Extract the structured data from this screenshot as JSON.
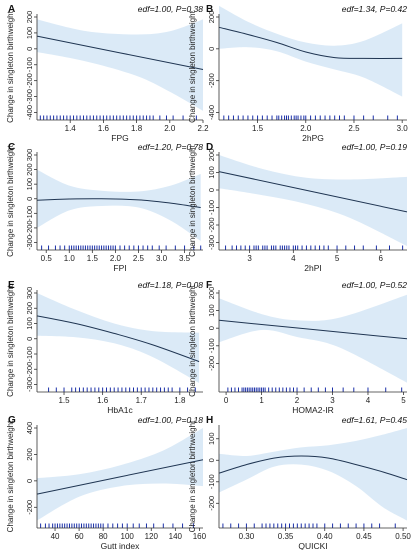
{
  "figure": {
    "background": "#ffffff"
  },
  "style": {
    "band": "#dbeaf7",
    "line": "#1f3552",
    "rug": "#1a2fa8",
    "axis": "#333333"
  },
  "chart_data": [
    {
      "panel": "A",
      "type": "line",
      "annotation": "edf=1.00, P=0.38",
      "xlabel": "FPG",
      "ylabel": "Change in singleton birthweight",
      "xlim": [
        1.2,
        2.2
      ],
      "ylim": [
        -400,
        200
      ],
      "xticks": [
        1.4,
        1.6,
        1.8,
        2.0,
        2.2
      ],
      "yticks": [
        -400,
        -300,
        -200,
        -100,
        0,
        100,
        200
      ],
      "curve": {
        "x": [
          1.2,
          2.2
        ],
        "y": [
          80,
          -130
        ]
      },
      "band_upper": {
        "x": [
          1.2,
          1.5,
          1.8,
          2.0,
          2.2
        ],
        "y": [
          185,
          110,
          90,
          110,
          185
        ]
      },
      "band_lower": {
        "x": [
          1.2,
          1.5,
          1.8,
          2.0,
          2.2
        ],
        "y": [
          -20,
          -80,
          -170,
          -270,
          -390
        ]
      },
      "rug": [
        1.22,
        1.24,
        1.26,
        1.28,
        1.3,
        1.32,
        1.34,
        1.36,
        1.38,
        1.4,
        1.42,
        1.44,
        1.46,
        1.48,
        1.5,
        1.52,
        1.54,
        1.56,
        1.58,
        1.6,
        1.62,
        1.64,
        1.66,
        1.68,
        1.7,
        1.72,
        1.74,
        1.76,
        1.78,
        1.8,
        1.82,
        1.84,
        1.86,
        1.88,
        1.9,
        1.94,
        1.98,
        2.02,
        2.08,
        2.16
      ]
    },
    {
      "panel": "B",
      "type": "line",
      "annotation": "edf=1.34, P=0.42",
      "xlabel": "2hPG",
      "ylabel": "Change in singleton birthweight",
      "xlim": [
        1.1,
        3.05
      ],
      "ylim": [
        -400,
        200
      ],
      "xticks": [
        1.5,
        2.0,
        2.5,
        3.0
      ],
      "yticks": [
        -400,
        -200,
        0,
        200
      ],
      "curve": {
        "x": [
          1.1,
          1.4,
          1.7,
          2.0,
          2.3,
          2.6,
          3.0
        ],
        "y": [
          135,
          90,
          40,
          -20,
          -55,
          -60,
          -60
        ]
      },
      "band_upper": {
        "x": [
          1.1,
          1.4,
          1.7,
          2.0,
          2.3,
          2.6,
          3.0
        ],
        "y": [
          270,
          170,
          95,
          40,
          20,
          50,
          160
        ]
      },
      "band_lower": {
        "x": [
          1.1,
          1.4,
          1.7,
          2.0,
          2.3,
          2.6,
          3.0
        ],
        "y": [
          0,
          10,
          -15,
          -80,
          -130,
          -180,
          -300
        ]
      },
      "rug": [
        1.15,
        1.2,
        1.25,
        1.3,
        1.35,
        1.4,
        1.45,
        1.5,
        1.55,
        1.6,
        1.65,
        1.7,
        1.72,
        1.75,
        1.78,
        1.8,
        1.82,
        1.85,
        1.88,
        1.9,
        1.92,
        1.95,
        1.98,
        2.0,
        2.05,
        2.1,
        2.15,
        2.2,
        2.25,
        2.3,
        2.35,
        2.4,
        2.5,
        2.6,
        2.7,
        2.85,
        2.95
      ]
    },
    {
      "panel": "C",
      "type": "line",
      "annotation": "edf=1.20, P=0.78",
      "xlabel": "FPI",
      "ylabel": "Change in singleton birthweight",
      "xlim": [
        0.3,
        3.9
      ],
      "ylim": [
        -300,
        300
      ],
      "xticks": [
        0.5,
        1.0,
        1.5,
        2.0,
        2.5,
        3.0,
        3.5
      ],
      "yticks": [
        -300,
        -200,
        -100,
        0,
        100,
        200,
        300
      ],
      "curve": {
        "x": [
          0.3,
          1.0,
          1.7,
          2.5,
          3.2,
          3.85
        ],
        "y": [
          -10,
          -2,
          0,
          -8,
          -30,
          -60
        ]
      },
      "band_upper": {
        "x": [
          0.3,
          1.0,
          1.7,
          2.5,
          3.2,
          3.85
        ],
        "y": [
          200,
          90,
          55,
          50,
          90,
          170
        ]
      },
      "band_lower": {
        "x": [
          0.3,
          1.0,
          1.7,
          2.5,
          3.2,
          3.85
        ],
        "y": [
          -200,
          -80,
          -50,
          -60,
          -150,
          -290
        ]
      },
      "rug": [
        0.4,
        0.55,
        0.7,
        0.8,
        0.9,
        1.0,
        1.05,
        1.1,
        1.15,
        1.2,
        1.25,
        1.3,
        1.35,
        1.4,
        1.45,
        1.5,
        1.55,
        1.6,
        1.65,
        1.7,
        1.75,
        1.8,
        1.85,
        1.9,
        1.95,
        2.0,
        2.1,
        2.2,
        2.3,
        2.4,
        2.5,
        2.6,
        2.7,
        2.8,
        2.95,
        3.1,
        3.3,
        3.5,
        3.7,
        3.85
      ]
    },
    {
      "panel": "D",
      "type": "line",
      "annotation": "edf=1.00, P=0.19",
      "xlabel": "2hPI",
      "ylabel": "Change in singleton birthweight",
      "xlim": [
        2.3,
        6.6
      ],
      "ylim": [
        -300,
        200
      ],
      "xticks": [
        3,
        4,
        5,
        6
      ],
      "yticks": [
        -300,
        -200,
        -100,
        0,
        100,
        200
      ],
      "curve": {
        "x": [
          2.3,
          6.6
        ],
        "y": [
          105,
          -125
        ]
      },
      "band_upper": {
        "x": [
          2.3,
          3.3,
          4.3,
          5.3,
          6.6
        ],
        "y": [
          200,
          120,
          70,
          60,
          75
        ]
      },
      "band_lower": {
        "x": [
          2.3,
          3.3,
          4.3,
          5.3,
          6.6
        ],
        "y": [
          10,
          -30,
          -80,
          -160,
          -320
        ]
      },
      "rug": [
        2.45,
        2.6,
        2.7,
        2.8,
        2.9,
        3.0,
        3.1,
        3.15,
        3.2,
        3.3,
        3.35,
        3.4,
        3.5,
        3.55,
        3.6,
        3.7,
        3.75,
        3.8,
        3.85,
        3.9,
        4.0,
        4.05,
        4.1,
        4.2,
        4.3,
        4.4,
        4.5,
        4.6,
        4.7,
        4.8,
        5.0,
        5.2,
        5.4,
        5.6,
        5.9,
        6.2,
        6.5
      ]
    },
    {
      "panel": "E",
      "type": "line",
      "annotation": "edf=1.18, P=0.08",
      "xlabel": "HbA1c",
      "ylabel": "Change in singleton birthweight",
      "xlim": [
        1.43,
        1.86
      ],
      "ylim": [
        -300,
        300
      ],
      "xticks": [
        1.5,
        1.6,
        1.7,
        1.8
      ],
      "yticks": [
        -300,
        -200,
        -100,
        0,
        100,
        200,
        300
      ],
      "curve": {
        "x": [
          1.43,
          1.53,
          1.63,
          1.73,
          1.85
        ],
        "y": [
          150,
          100,
          35,
          -40,
          -150
        ]
      },
      "band_upper": {
        "x": [
          1.43,
          1.53,
          1.63,
          1.73,
          1.85
        ],
        "y": [
          300,
          190,
          100,
          50,
          40
        ]
      },
      "band_lower": {
        "x": [
          1.43,
          1.53,
          1.63,
          1.73,
          1.85
        ],
        "y": [
          20,
          10,
          -30,
          -120,
          -290
        ]
      },
      "rug": [
        1.46,
        1.48,
        1.5,
        1.52,
        1.53,
        1.54,
        1.55,
        1.56,
        1.57,
        1.58,
        1.59,
        1.6,
        1.61,
        1.62,
        1.63,
        1.64,
        1.65,
        1.66,
        1.67,
        1.68,
        1.69,
        1.7,
        1.71,
        1.72,
        1.73,
        1.74,
        1.75,
        1.76,
        1.77,
        1.78,
        1.8,
        1.82,
        1.84
      ]
    },
    {
      "panel": "F",
      "type": "line",
      "annotation": "edf=1.00, P=0.52",
      "xlabel": "HOMA2-IR",
      "ylabel": "Change in singleton birthweight",
      "xlim": [
        -0.2,
        5.1
      ],
      "ylim": [
        -320,
        200
      ],
      "xticks": [
        0,
        1,
        2,
        3,
        4,
        5
      ],
      "yticks": [
        -200,
        -100,
        0,
        100,
        200
      ],
      "curve": {
        "x": [
          -0.2,
          5.1
        ],
        "y": [
          45,
          -60
        ]
      },
      "band_upper": {
        "x": [
          -0.2,
          1.0,
          2.0,
          3.2,
          5.1
        ],
        "y": [
          170,
          80,
          45,
          60,
          190
        ]
      },
      "band_lower": {
        "x": [
          -0.2,
          1.0,
          2.0,
          3.2,
          5.1
        ],
        "y": [
          -80,
          -10,
          -50,
          -110,
          -310
        ]
      },
      "rug": [
        0.05,
        0.15,
        0.25,
        0.35,
        0.45,
        0.5,
        0.55,
        0.6,
        0.65,
        0.7,
        0.75,
        0.8,
        0.85,
        0.9,
        0.95,
        1.0,
        1.05,
        1.1,
        1.2,
        1.3,
        1.4,
        1.5,
        1.6,
        1.7,
        1.8,
        1.9,
        2.0,
        2.2,
        2.4,
        2.6,
        2.8,
        3.0,
        3.3,
        3.6,
        4.0,
        4.5,
        4.95
      ]
    },
    {
      "panel": "G",
      "type": "line",
      "annotation": "edf=1.00, P=0.18",
      "xlabel": "Gutt index",
      "ylabel": "Change in singleton birthweight",
      "xlim": [
        25,
        163
      ],
      "ylim": [
        -300,
        400
      ],
      "xticks": [
        40,
        60,
        80,
        100,
        120,
        140,
        160
      ],
      "yticks": [
        -200,
        0,
        200,
        400
      ],
      "curve": {
        "x": [
          25,
          163
        ],
        "y": [
          -100,
          160
        ]
      },
      "band_upper": {
        "x": [
          25,
          60,
          95,
          130,
          163
        ],
        "y": [
          20,
          50,
          120,
          230,
          400
        ]
      },
      "band_lower": {
        "x": [
          25,
          60,
          95,
          130,
          163
        ],
        "y": [
          -300,
          -120,
          -40,
          -20,
          -40
        ]
      },
      "rug": [
        28,
        32,
        35,
        38,
        40,
        42,
        44,
        46,
        48,
        50,
        52,
        54,
        56,
        58,
        60,
        62,
        64,
        66,
        68,
        70,
        72,
        74,
        76,
        78,
        80,
        84,
        88,
        92,
        96,
        100,
        105,
        110,
        116,
        122,
        130,
        138,
        146,
        155
      ]
    },
    {
      "panel": "H",
      "type": "line",
      "annotation": "edf=1.61, P=0.45",
      "xlabel": "QUICKI",
      "ylabel": "Change in singleton birthweight",
      "xlim": [
        0.265,
        0.505
      ],
      "ylim": [
        -280,
        150
      ],
      "xticks": [
        0.3,
        0.35,
        0.4,
        0.45,
        0.5
      ],
      "yticks": [
        -200,
        -100,
        0,
        100
      ],
      "curve": {
        "x": [
          0.265,
          0.3,
          0.335,
          0.37,
          0.405,
          0.44,
          0.475,
          0.505
        ],
        "y": [
          -60,
          -20,
          10,
          20,
          10,
          -20,
          -55,
          -90
        ]
      },
      "band_upper": {
        "x": [
          0.265,
          0.3,
          0.335,
          0.37,
          0.405,
          0.44,
          0.475,
          0.505
        ],
        "y": [
          30,
          20,
          40,
          60,
          70,
          90,
          120,
          150
        ]
      },
      "band_lower": {
        "x": [
          0.265,
          0.3,
          0.335,
          0.37,
          0.405,
          0.44,
          0.475,
          0.505
        ],
        "y": [
          -150,
          -90,
          -30,
          -20,
          -50,
          -120,
          -220,
          -280
        ]
      },
      "rug": [
        0.27,
        0.28,
        0.29,
        0.3,
        0.31,
        0.32,
        0.325,
        0.33,
        0.335,
        0.34,
        0.345,
        0.35,
        0.355,
        0.36,
        0.365,
        0.37,
        0.375,
        0.38,
        0.385,
        0.39,
        0.4,
        0.41,
        0.42,
        0.43,
        0.44,
        0.45,
        0.46,
        0.47,
        0.49
      ]
    }
  ]
}
